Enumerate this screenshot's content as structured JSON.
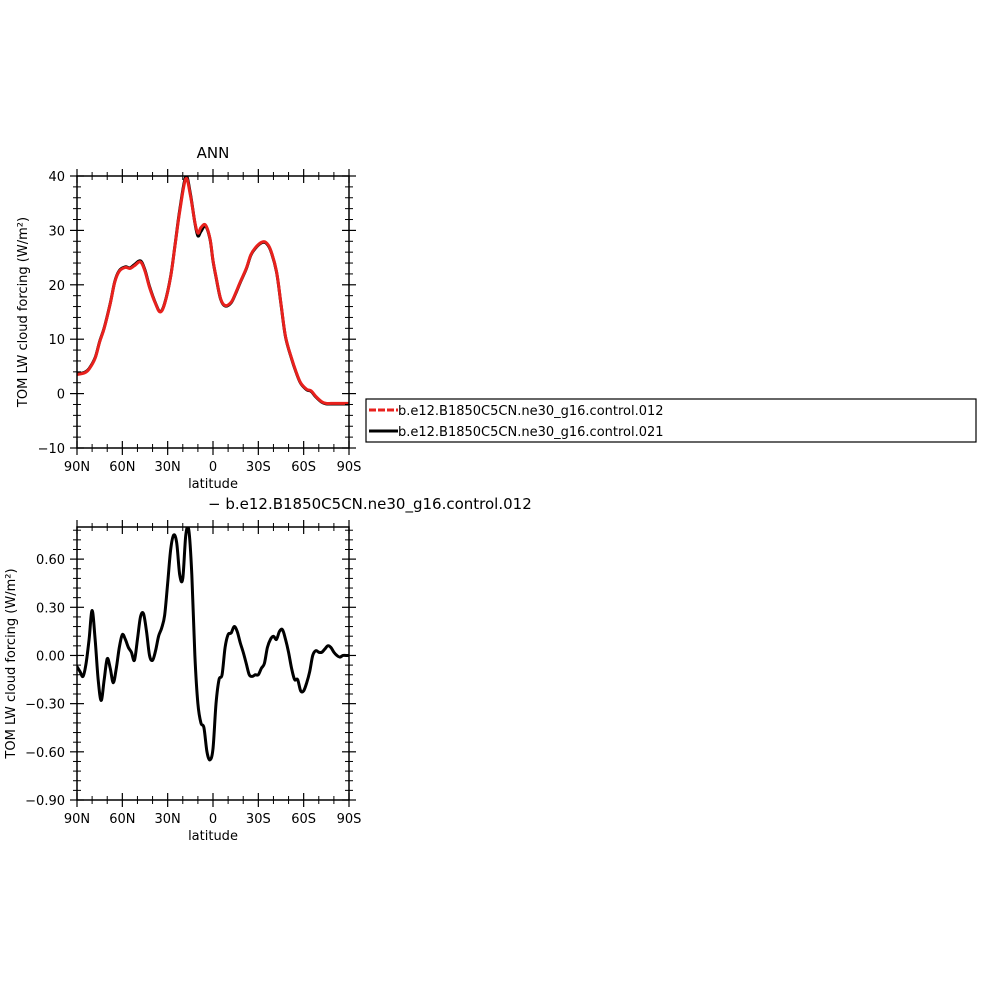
{
  "chart_data": [
    {
      "type": "line",
      "title": "ANN",
      "xlabel": "latitude",
      "ylabel": "TOM LW cloud forcing (W/m²)",
      "xlim": [
        90,
        -90
      ],
      "ylim": [
        -10,
        40
      ],
      "x_ticks": [
        {
          "value": 90,
          "label": "90N"
        },
        {
          "value": 60,
          "label": "60N"
        },
        {
          "value": 30,
          "label": "30N"
        },
        {
          "value": 0,
          "label": "0"
        },
        {
          "value": -30,
          "label": "30S"
        },
        {
          "value": -60,
          "label": "60S"
        },
        {
          "value": -90,
          "label": "90S"
        }
      ],
      "y_ticks": [
        {
          "value": -10,
          "label": "−10"
        },
        {
          "value": 0,
          "label": "0"
        },
        {
          "value": 10,
          "label": "10"
        },
        {
          "value": 20,
          "label": "20"
        },
        {
          "value": 30,
          "label": "30"
        },
        {
          "value": 40,
          "label": "40"
        }
      ],
      "legend": {
        "placement": "right",
        "entries": [
          {
            "name": "b.e12.B1850C5CN.ne30_g16.control.012",
            "color": "#e8211d",
            "dash": "dashed"
          },
          {
            "name": "b.e12.B1850C5CN.ne30_g16.control.021",
            "color": "#000000",
            "dash": "solid"
          }
        ]
      },
      "series": [
        {
          "name": "b.e12.B1850C5CN.ne30_g16.control.012",
          "color": "#e8211d",
          "x": [
            90,
            85,
            82,
            78,
            75,
            72,
            68,
            65,
            62,
            58,
            55,
            52,
            48,
            45,
            42,
            38,
            35,
            32,
            28,
            25,
            22,
            18,
            15,
            12,
            10,
            8,
            5,
            2,
            0,
            -2,
            -5,
            -8,
            -12,
            -15,
            -18,
            -22,
            -25,
            -28,
            -32,
            -35,
            -38,
            -42,
            -45,
            -48,
            -52,
            -55,
            -58,
            -62,
            -65,
            -68,
            -72,
            -75,
            -78,
            -82,
            -85,
            -88,
            -90
          ],
          "y": [
            3.5,
            3.8,
            4.5,
            6.5,
            9.5,
            12,
            16.5,
            20.5,
            22.5,
            23.2,
            23.0,
            23.5,
            24.2,
            22.5,
            19.5,
            16.5,
            15.0,
            16.5,
            21.5,
            27.5,
            33.5,
            39.5,
            36.5,
            31.5,
            29.5,
            30.5,
            31.0,
            28.5,
            24.5,
            21.5,
            17.5,
            16.2,
            16.8,
            18.5,
            20.5,
            23.0,
            25.5,
            26.8,
            27.8,
            27.8,
            26.5,
            22.5,
            16.5,
            10.5,
            6.5,
            4.0,
            2.0,
            0.8,
            0.5,
            -0.5,
            -1.5,
            -1.8,
            -1.8,
            -1.8,
            -1.8,
            -1.8,
            -1.8
          ]
        },
        {
          "name": "b.e12.B1850C5CN.ne30_g16.control.021",
          "color": "#000000",
          "x": [
            90,
            85,
            82,
            78,
            75,
            72,
            68,
            65,
            62,
            58,
            55,
            52,
            48,
            45,
            42,
            38,
            35,
            32,
            28,
            25,
            22,
            18,
            15,
            12,
            10,
            8,
            5,
            2,
            0,
            -2,
            -5,
            -8,
            -12,
            -15,
            -18,
            -22,
            -25,
            -28,
            -32,
            -35,
            -38,
            -42,
            -45,
            -48,
            -52,
            -55,
            -58,
            -62,
            -65,
            -68,
            -72,
            -75,
            -78,
            -82,
            -85,
            -88,
            -90
          ],
          "y": [
            3.6,
            3.9,
            4.6,
            6.6,
            9.6,
            12.1,
            16.6,
            20.6,
            22.6,
            23.3,
            23.1,
            23.7,
            24.4,
            22.7,
            19.7,
            16.6,
            15.1,
            16.6,
            21.6,
            27.6,
            33.8,
            39.9,
            36.8,
            31.4,
            29.0,
            29.8,
            30.8,
            28.4,
            24.4,
            21.4,
            17.4,
            16.1,
            16.7,
            18.4,
            20.4,
            22.9,
            25.4,
            26.7,
            27.7,
            27.7,
            26.4,
            22.4,
            16.4,
            10.4,
            6.4,
            3.9,
            1.9,
            0.7,
            0.4,
            -0.6,
            -1.6,
            -1.9,
            -1.9,
            -1.9,
            -1.9,
            -1.9,
            -1.9
          ]
        }
      ]
    },
    {
      "type": "line",
      "title": "− b.e12.B1850C5CN.ne30_g16.control.012",
      "xlabel": "latitude",
      "ylabel": "TOM LW cloud forcing (W/m²)",
      "xlim": [
        90,
        -90
      ],
      "ylim": [
        -0.9,
        0.8
      ],
      "x_ticks": [
        {
          "value": 90,
          "label": "90N"
        },
        {
          "value": 60,
          "label": "60N"
        },
        {
          "value": 30,
          "label": "30N"
        },
        {
          "value": 0,
          "label": "0"
        },
        {
          "value": -30,
          "label": "30S"
        },
        {
          "value": -60,
          "label": "60S"
        },
        {
          "value": -90,
          "label": "90S"
        }
      ],
      "y_ticks": [
        {
          "value": -0.9,
          "label": "−0.90"
        },
        {
          "value": -0.6,
          "label": "−0.60"
        },
        {
          "value": -0.3,
          "label": "−0.30"
        },
        {
          "value": 0.0,
          "label": "0.00"
        },
        {
          "value": 0.3,
          "label": "0.30"
        },
        {
          "value": 0.6,
          "label": "0.60"
        }
      ],
      "series": [
        {
          "color": "#000000",
          "x": [
            90,
            88,
            86,
            84,
            82,
            80,
            78,
            76,
            74,
            72,
            70,
            68,
            66,
            64,
            62,
            60,
            58,
            56,
            54,
            52,
            50,
            48,
            46,
            44,
            42,
            40,
            38,
            36,
            34,
            32,
            30,
            28,
            26,
            24,
            22,
            20,
            18,
            16,
            14,
            12,
            10,
            8,
            6,
            4,
            2,
            0,
            -2,
            -4,
            -6,
            -8,
            -10,
            -12,
            -14,
            -16,
            -18,
            -20,
            -22,
            -24,
            -26,
            -28,
            -30,
            -32,
            -34,
            -36,
            -38,
            -40,
            -42,
            -44,
            -46,
            -48,
            -50,
            -52,
            -54,
            -56,
            -58,
            -60,
            -62,
            -64,
            -66,
            -68,
            -70,
            -72,
            -74,
            -76,
            -78,
            -80,
            -82,
            -84,
            -86,
            -88,
            -90
          ],
          "y": [
            -0.07,
            -0.1,
            -0.13,
            -0.05,
            0.1,
            0.28,
            0.1,
            -0.15,
            -0.28,
            -0.15,
            -0.02,
            -0.08,
            -0.17,
            -0.08,
            0.05,
            0.13,
            0.1,
            0.05,
            0.02,
            -0.03,
            0.1,
            0.24,
            0.26,
            0.15,
            0.0,
            -0.03,
            0.03,
            0.12,
            0.17,
            0.25,
            0.45,
            0.66,
            0.75,
            0.7,
            0.5,
            0.48,
            0.75,
            0.78,
            0.5,
            0.0,
            -0.3,
            -0.42,
            -0.45,
            -0.6,
            -0.65,
            -0.58,
            -0.3,
            -0.15,
            -0.12,
            0.05,
            0.13,
            0.14,
            0.18,
            0.15,
            0.08,
            0.02,
            -0.05,
            -0.12,
            -0.13,
            -0.12,
            -0.12,
            -0.08,
            -0.05,
            0.05,
            0.1,
            0.12,
            0.1,
            0.15,
            0.16,
            0.1,
            0.02,
            -0.08,
            -0.15,
            -0.15,
            -0.22,
            -0.22,
            -0.17,
            -0.1,
            0.0,
            0.03,
            0.02,
            0.02,
            0.04,
            0.06,
            0.05,
            0.02,
            0.0,
            -0.01,
            0.0,
            0.0,
            0.0
          ]
        }
      ]
    }
  ]
}
